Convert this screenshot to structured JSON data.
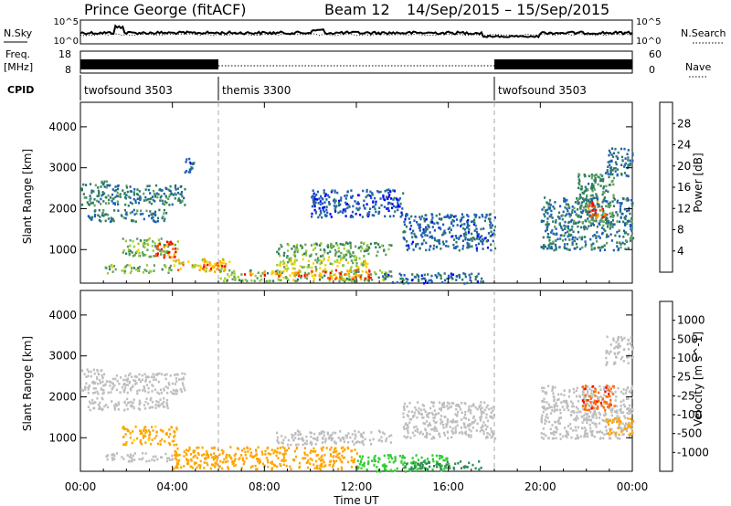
{
  "header": {
    "title": "Prince George (fitACF)",
    "beam": "Beam 12",
    "date_range": "14/Sep/2015 – 15/Sep/2015"
  },
  "status_panels": {
    "nsky_label": "N.Sky",
    "nsky_ticks": [
      "10^5",
      "10^0"
    ],
    "nsearch_label": "N.Search",
    "nsearch_ticks": [
      "10^5",
      "10^0"
    ],
    "freq_label": "Freq.",
    "freq_unit": "[MHz]",
    "freq_ticks": [
      "18",
      "8"
    ],
    "nave_label": "Nave",
    "nave_ticks": [
      "60",
      "0"
    ],
    "cpid_label": "CPID"
  },
  "cpid_segments": [
    {
      "start": 0,
      "end": 6,
      "name": "twofsound 3503"
    },
    {
      "start": 6,
      "end": 18,
      "name": "themis 3300"
    },
    {
      "start": 18,
      "end": 24,
      "name": "twofsound 3503"
    }
  ],
  "chart_data": [
    {
      "type": "heatmap",
      "quantity": "power",
      "xlabel": "Time UT",
      "ylabel": "Slant Range [km]",
      "xlim": [
        0,
        24
      ],
      "ylim": [
        180,
        4600
      ],
      "x_ticks": [
        0,
        4,
        8,
        12,
        16,
        20,
        24
      ],
      "x_tick_labels": [
        "00:00",
        "04:00",
        "08:00",
        "12:00",
        "16:00",
        "20:00",
        "00:00"
      ],
      "y_ticks": [
        1000,
        2000,
        3000,
        4000
      ],
      "y_tick_labels": [
        "1000",
        "2000",
        "3000",
        "4000"
      ],
      "colorbar_label": "Power [dB]",
      "colorbar_range": [
        0,
        32
      ],
      "colorbar_ticks": [
        "4",
        "8",
        "12",
        "16",
        "20",
        "24",
        "28"
      ],
      "colorbar_colors": [
        "#0000ff",
        "#1f5fb3",
        "#2e7d5f",
        "#5fa05f",
        "#9acd32",
        "#ffd000",
        "#ffa500",
        "#ff5500",
        "#ff0000"
      ],
      "regions": [
        {
          "t0": 0.0,
          "t1": 1.2,
          "r0": 2100,
          "r1": 2700,
          "value": 9
        },
        {
          "t0": 1.2,
          "t1": 4.6,
          "r0": 2100,
          "r1": 2600,
          "value": 8
        },
        {
          "t0": 0.3,
          "t1": 3.8,
          "r0": 1700,
          "r1": 2000,
          "value": 8
        },
        {
          "t0": 1.8,
          "t1": 4.2,
          "r0": 850,
          "r1": 1300,
          "value": 14
        },
        {
          "t0": 3.2,
          "t1": 4.1,
          "r0": 820,
          "r1": 1220,
          "value": 30
        },
        {
          "t0": 1.0,
          "t1": 4.0,
          "r0": 450,
          "r1": 650,
          "value": 14
        },
        {
          "t0": 4.0,
          "t1": 6.5,
          "r0": 480,
          "r1": 800,
          "value": 20
        },
        {
          "t0": 5.2,
          "t1": 6.4,
          "r0": 520,
          "r1": 700,
          "value": 26
        },
        {
          "t0": 6.0,
          "t1": 13.5,
          "r0": 250,
          "r1": 520,
          "value": 14
        },
        {
          "t0": 7.0,
          "t1": 10.5,
          "r0": 380,
          "r1": 520,
          "value": 24
        },
        {
          "t0": 10.5,
          "t1": 12.6,
          "r0": 300,
          "r1": 550,
          "value": 26
        },
        {
          "t0": 8.5,
          "t1": 13.5,
          "r0": 850,
          "r1": 1200,
          "value": 12
        },
        {
          "t0": 8.5,
          "t1": 12.5,
          "r0": 550,
          "r1": 850,
          "value": 16
        },
        {
          "t0": 13.0,
          "t1": 17.5,
          "r0": 200,
          "r1": 450,
          "value": 6
        },
        {
          "t0": 14.0,
          "t1": 18.0,
          "r0": 1000,
          "r1": 1900,
          "value": 6
        },
        {
          "t0": 10.0,
          "t1": 14.0,
          "r0": 1800,
          "r1": 2500,
          "value": 5
        },
        {
          "t0": 20.0,
          "t1": 24.0,
          "r0": 1000,
          "r1": 2300,
          "value": 8
        },
        {
          "t0": 21.6,
          "t1": 23.2,
          "r0": 1600,
          "r1": 2900,
          "value": 10
        },
        {
          "t0": 22.0,
          "t1": 22.8,
          "r0": 1800,
          "r1": 2200,
          "value": 28
        },
        {
          "t0": 22.8,
          "t1": 24.0,
          "r0": 2800,
          "r1": 3500,
          "value": 7
        },
        {
          "t0": 4.5,
          "t1": 5.0,
          "r0": 2900,
          "r1": 3300,
          "value": 6
        }
      ]
    },
    {
      "type": "heatmap",
      "quantity": "velocity",
      "xlabel": "Time UT",
      "ylabel": "Slant Range [km]",
      "xlim": [
        0,
        24
      ],
      "ylim": [
        180,
        4600
      ],
      "x_ticks": [
        0,
        4,
        8,
        12,
        16,
        20,
        24
      ],
      "x_tick_labels": [
        "00:00",
        "04:00",
        "08:00",
        "12:00",
        "16:00",
        "20:00",
        "00:00"
      ],
      "y_ticks": [
        1000,
        2000,
        3000,
        4000
      ],
      "y_tick_labels": [
        "1000",
        "2000",
        "3000",
        "4000"
      ],
      "colorbar_label": "Velocity [m s^-1]",
      "colorbar_ticks": [
        "1000",
        "500",
        "100",
        "25",
        "-25",
        "-100",
        "-500",
        "-1000"
      ],
      "colorbar_colors": [
        "#1e3fc8",
        "#1f5fb3",
        "#2e8b57",
        "#32cd32",
        "#bebebe",
        "#ffd700",
        "#ffa500",
        "#ff6a00",
        "#ff0000"
      ],
      "regions": [
        {
          "t0": 0.0,
          "t1": 1.3,
          "r0": 2100,
          "r1": 2700,
          "value": 0
        },
        {
          "t0": 1.2,
          "t1": 4.5,
          "r0": 2100,
          "r1": 2600,
          "value": 0
        },
        {
          "t0": 0.3,
          "t1": 3.8,
          "r0": 1700,
          "r1": 2000,
          "value": 0
        },
        {
          "t0": 1.8,
          "t1": 4.2,
          "r0": 850,
          "r1": 1300,
          "value": -120
        },
        {
          "t0": 1.0,
          "t1": 4.0,
          "r0": 450,
          "r1": 650,
          "value": 0
        },
        {
          "t0": 4.0,
          "t1": 12.0,
          "r0": 250,
          "r1": 800,
          "value": -150
        },
        {
          "t0": 8.5,
          "t1": 13.5,
          "r0": 850,
          "r1": 1200,
          "value": 0
        },
        {
          "t0": 12.0,
          "t1": 16.0,
          "r0": 200,
          "r1": 600,
          "value": 60
        },
        {
          "t0": 14.0,
          "t1": 17.5,
          "r0": 250,
          "r1": 450,
          "value": 150
        },
        {
          "t0": 14.0,
          "t1": 18.0,
          "r0": 1000,
          "r1": 1900,
          "value": 0
        },
        {
          "t0": 20.0,
          "t1": 24.0,
          "r0": 1000,
          "r1": 2300,
          "value": 0
        },
        {
          "t0": 21.8,
          "t1": 23.2,
          "r0": 1700,
          "r1": 2300,
          "value": -900
        },
        {
          "t0": 22.8,
          "t1": 24.0,
          "r0": 1100,
          "r1": 1500,
          "value": -400
        },
        {
          "t0": 22.8,
          "t1": 24.0,
          "r0": 2800,
          "r1": 3500,
          "value": 0
        }
      ]
    }
  ]
}
